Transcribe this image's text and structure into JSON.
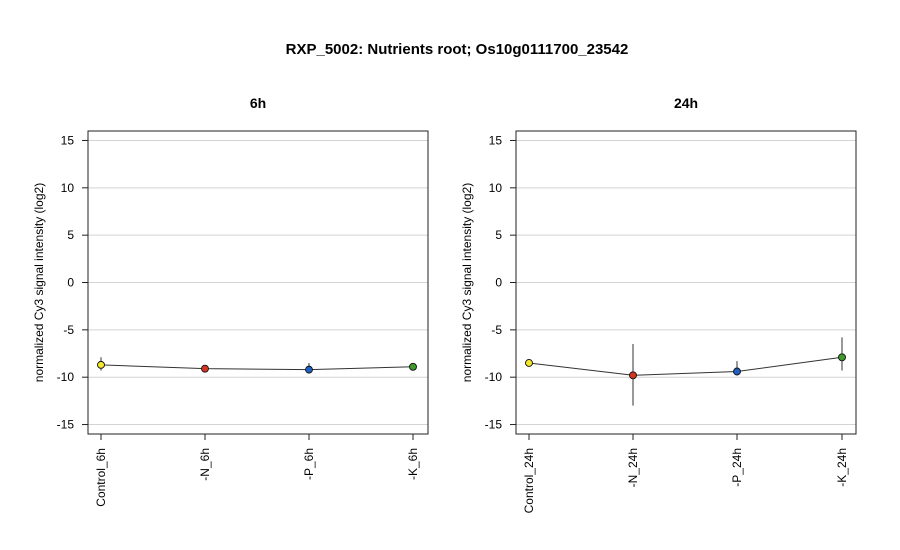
{
  "title": "RXP_5002: Nutrients root; Os10g0111700_23542",
  "chart_data": [
    {
      "type": "line",
      "title": "6h",
      "ylabel": "normalized Cy3 signal intensity (log2)",
      "ylim": [
        -16,
        16
      ],
      "yticks": [
        -15,
        -10,
        -5,
        0,
        5,
        10,
        15
      ],
      "grid": true,
      "categories": [
        "Control_6h",
        "-N_6h",
        "-P_6h",
        "-K_6h"
      ],
      "values": [
        -8.7,
        -9.1,
        -9.2,
        -8.9
      ],
      "err_low": [
        -9.3,
        -9.3,
        -9.5,
        -9.1
      ],
      "err_high": [
        -7.9,
        -8.9,
        -8.5,
        -8.6
      ],
      "colors": [
        "#f2e829",
        "#d4351f",
        "#1f5fc2",
        "#3f9a2a"
      ]
    },
    {
      "type": "line",
      "title": "24h",
      "ylabel": "normalized Cy3 signal intensity (log2)",
      "ylim": [
        -16,
        16
      ],
      "yticks": [
        -15,
        -10,
        -5,
        0,
        5,
        10,
        15
      ],
      "grid": true,
      "categories": [
        "Control_24h",
        "-N_24h",
        "-P_24h",
        "-K_24h"
      ],
      "values": [
        -8.5,
        -9.8,
        -9.4,
        -7.9
      ],
      "err_low": [
        -8.6,
        -13.0,
        -9.8,
        -9.3
      ],
      "err_high": [
        -8.3,
        -6.5,
        -8.3,
        -5.8
      ],
      "colors": [
        "#f2e829",
        "#d4351f",
        "#1f5fc2",
        "#3f9a2a"
      ]
    }
  ]
}
